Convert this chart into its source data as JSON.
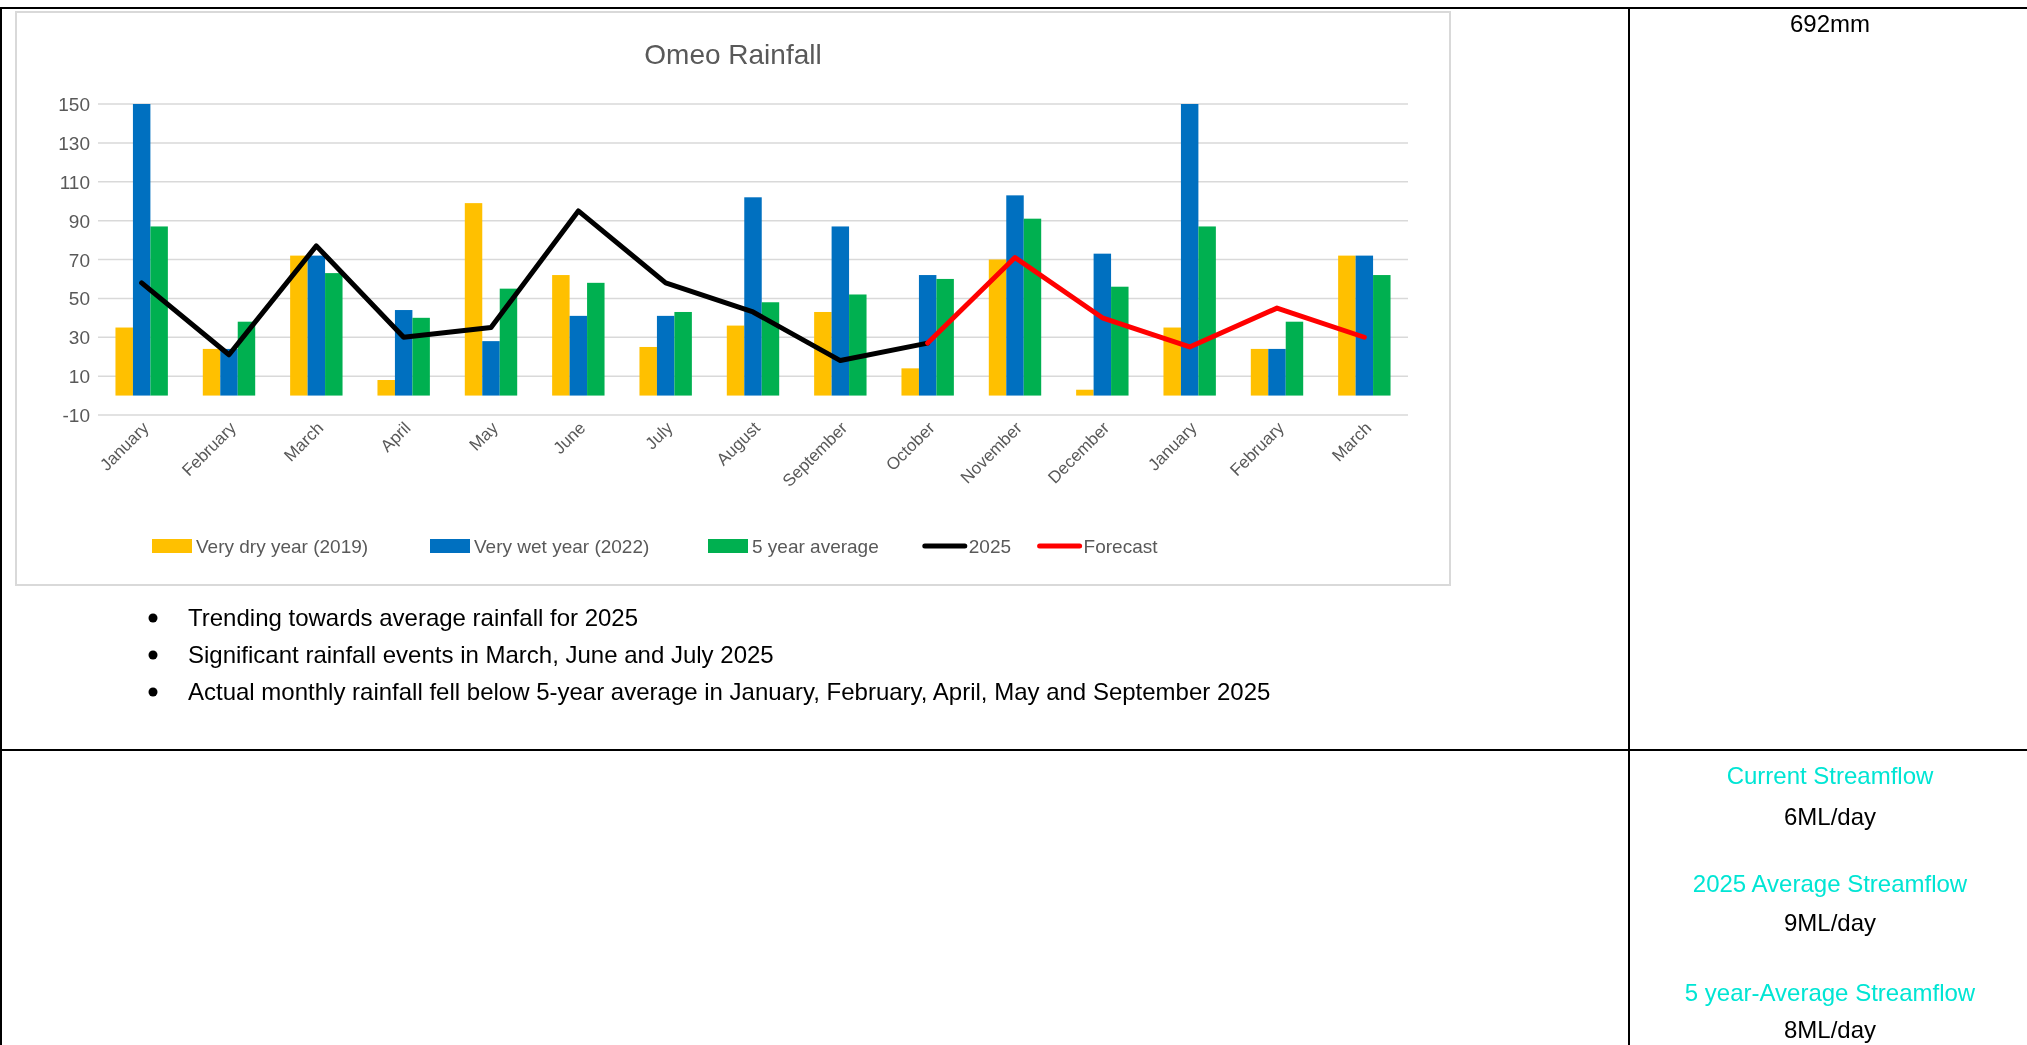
{
  "chart_data": {
    "type": "bar",
    "title": "Omeo Rainfall",
    "categories": [
      "January",
      "February",
      "March",
      "April",
      "May",
      "June",
      "July",
      "August",
      "September",
      "October",
      "November",
      "December",
      "January",
      "February",
      "March"
    ],
    "series": [
      {
        "name": "Very dry year (2019)",
        "color": "#ffc000",
        "values": [
          35,
          24,
          72,
          8,
          99,
          62,
          25,
          36,
          43,
          14,
          70,
          3,
          35,
          24,
          72
        ]
      },
      {
        "name": "Very wet year (2022)",
        "color": "#0070c0",
        "values": [
          150,
          24,
          72,
          44,
          28,
          41,
          41,
          102,
          87,
          62,
          103,
          73,
          150,
          24,
          72
        ]
      },
      {
        "name": "5 year average",
        "color": "#00b050",
        "values": [
          87,
          38,
          63,
          40,
          55,
          58,
          43,
          48,
          52,
          60,
          91,
          56,
          87,
          38,
          62
        ]
      },
      {
        "name": "2025",
        "type": "line",
        "color": "#000000",
        "values": [
          58,
          21,
          77,
          30,
          35,
          95,
          58,
          43,
          18,
          27,
          null,
          null,
          null,
          null,
          null
        ]
      },
      {
        "name": "Forecast",
        "type": "line",
        "color": "#ff0000",
        "values": [
          null,
          null,
          null,
          null,
          null,
          null,
          null,
          null,
          null,
          27,
          71,
          40,
          25,
          45,
          30
        ]
      }
    ],
    "ylim": [
      -10,
      150
    ],
    "yticks": [
      -10,
      10,
      30,
      50,
      70,
      90,
      110,
      130,
      150
    ],
    "grid": "y",
    "legend": "bottom",
    "marker": "none",
    "line_style": "solid",
    "annotations": [
      "692mm",
      "Trending towards average rainfall for 2025",
      "Significant rainfall events in March, June and July 2025",
      "Actual monthly rainfall fell below 5-year average in January, February, April, May and September 2025",
      "Current Streamflow",
      "6ML/day",
      "2025 Average Streamflow",
      "9ML/day",
      "5 year-Average Streamflow",
      "8ML/day"
    ]
  }
}
